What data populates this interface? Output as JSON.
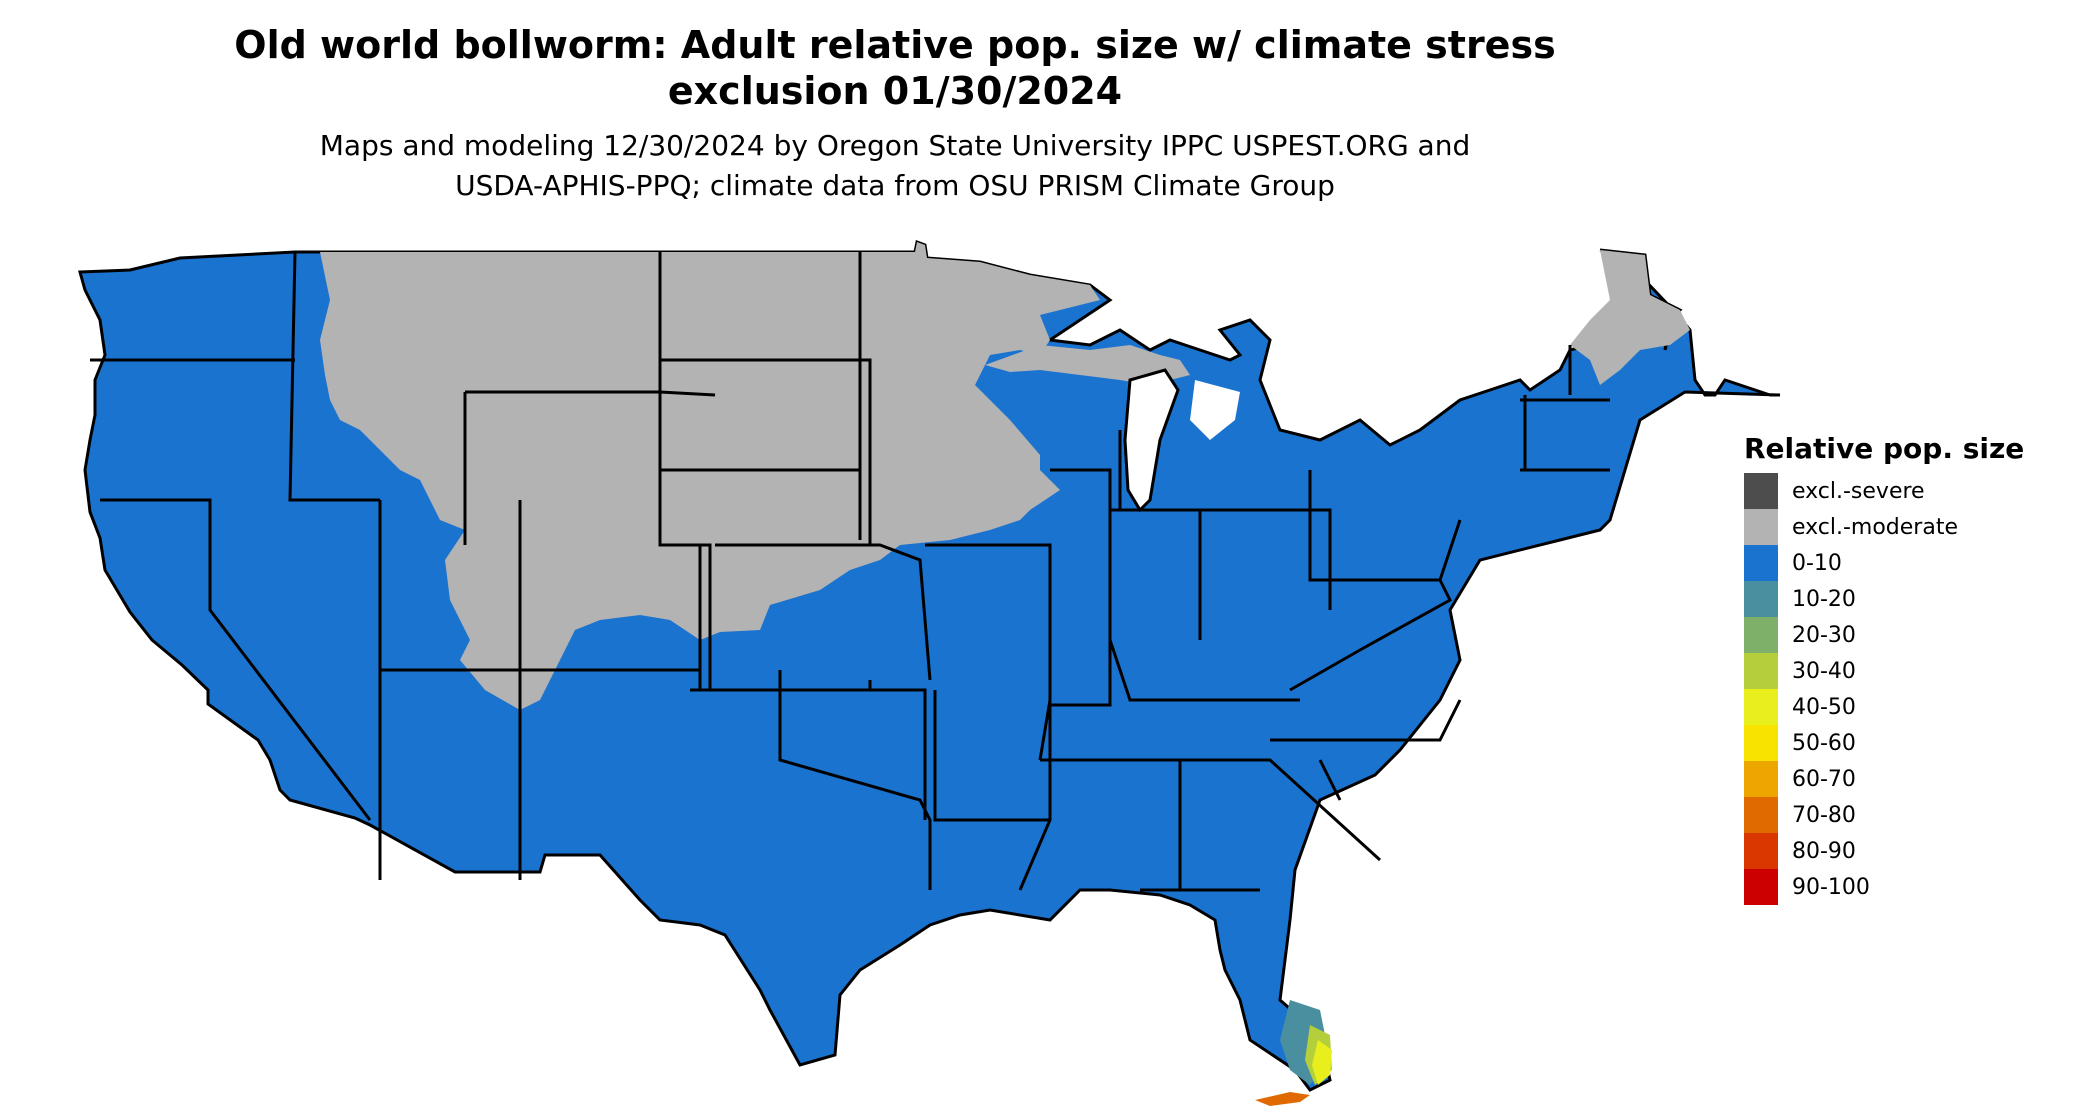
{
  "title": {
    "line1": "Old world bollworm: Adult relative pop. size w/ climate stress",
    "line2": "exclusion 01/30/2024"
  },
  "subtitle": {
    "line1": "Maps and modeling 12/30/2024 by Oregon State University IPPC USPEST.ORG and",
    "line2": "USDA-APHIS-PPQ; climate data from OSU PRISM Climate Group"
  },
  "map": {
    "region": "Contiguous United States",
    "fill_colors": {
      "excluded": "#b3b3b3",
      "low": "#1a73cf",
      "boundary": "#000000"
    },
    "hotspot": "southern Florida",
    "hotspot_classes": [
      "10-20",
      "20-30",
      "30-40",
      "40-50",
      "70-80"
    ]
  },
  "legend": {
    "title": "Relative pop. size",
    "items": [
      {
        "label": "excl.-severe",
        "color": "#4d4d4d"
      },
      {
        "label": "excl.-moderate",
        "color": "#b3b3b3"
      },
      {
        "label": "0-10",
        "color": "#1a73cf"
      },
      {
        "label": "10-20",
        "color": "#4a8fa0"
      },
      {
        "label": "20-30",
        "color": "#7fb069"
      },
      {
        "label": "30-40",
        "color": "#b5cf3c"
      },
      {
        "label": "40-50",
        "color": "#e8ef1c"
      },
      {
        "label": "50-60",
        "color": "#f7e200"
      },
      {
        "label": "60-70",
        "color": "#eda500"
      },
      {
        "label": "70-80",
        "color": "#e06a00"
      },
      {
        "label": "80-90",
        "color": "#d93600"
      },
      {
        "label": "90-100",
        "color": "#cc0000"
      }
    ]
  }
}
